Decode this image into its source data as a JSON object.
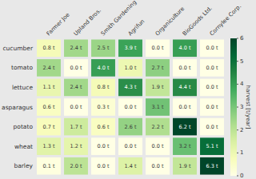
{
  "chart_data": {
    "type": "heatmap",
    "rows": [
      "cucumber",
      "tomato",
      "lettuce",
      "asparagus",
      "potato",
      "wheat",
      "barley"
    ],
    "columns": [
      "Farmer Joe",
      "Upland Bros.",
      "Smith Gardening",
      "Agrifun",
      "Organiculture",
      "BioGoods Ltd.",
      "Cornylee Corp."
    ],
    "values": [
      [
        0.8,
        2.4,
        2.5,
        3.9,
        0.0,
        4.0,
        0.0
      ],
      [
        2.4,
        0.0,
        4.0,
        1.0,
        2.7,
        0.0,
        0.0
      ],
      [
        1.1,
        2.4,
        0.8,
        4.3,
        1.9,
        4.4,
        0.0
      ],
      [
        0.6,
        0.0,
        0.3,
        0.0,
        3.1,
        0.0,
        0.0
      ],
      [
        0.7,
        1.7,
        0.6,
        2.6,
        2.2,
        6.2,
        0.0
      ],
      [
        1.3,
        1.2,
        0.0,
        0.0,
        0.0,
        3.2,
        5.1
      ],
      [
        0.1,
        2.0,
        0.0,
        1.4,
        0.0,
        1.9,
        6.3
      ]
    ],
    "value_labels": [
      [
        "0.8 t",
        "2.4 t",
        "2.5 t",
        "3.9 t",
        "0.0 t",
        "4.0 t",
        "0.0 t"
      ],
      [
        "2.4 t",
        "0.0 t",
        "4.0 t",
        "1.0 t",
        "2.7 t",
        "0.0 t",
        "0.0 t"
      ],
      [
        "1.1 t",
        "2.4 t",
        "0.8 t",
        "4.3 t",
        "1.9 t",
        "4.4 t",
        "0.0 t"
      ],
      [
        "0.6 t",
        "0.0 t",
        "0.3 t",
        "0.0 t",
        "3.1 t",
        "0.0 t",
        "0.0 t"
      ],
      [
        "0.7 t",
        "1.7 t",
        "0.6 t",
        "2.6 t",
        "2.2 t",
        "6.2 t",
        "0.0 t"
      ],
      [
        "1.3 t",
        "1.2 t",
        "0.0 t",
        "0.0 t",
        "0.0 t",
        "3.2 t",
        "5.1 t"
      ],
      [
        "0.1 t",
        "2.0 t",
        "0.0 t",
        "1.4 t",
        "0.0 t",
        "1.9 t",
        "6.3 t"
      ]
    ],
    "data_labels": true,
    "colorbar_label": "harvest [t/year]",
    "colorbar_range": [
      0,
      6
    ],
    "colorbar_ticks": [
      0,
      1,
      2,
      3,
      4,
      5,
      6
    ]
  }
}
